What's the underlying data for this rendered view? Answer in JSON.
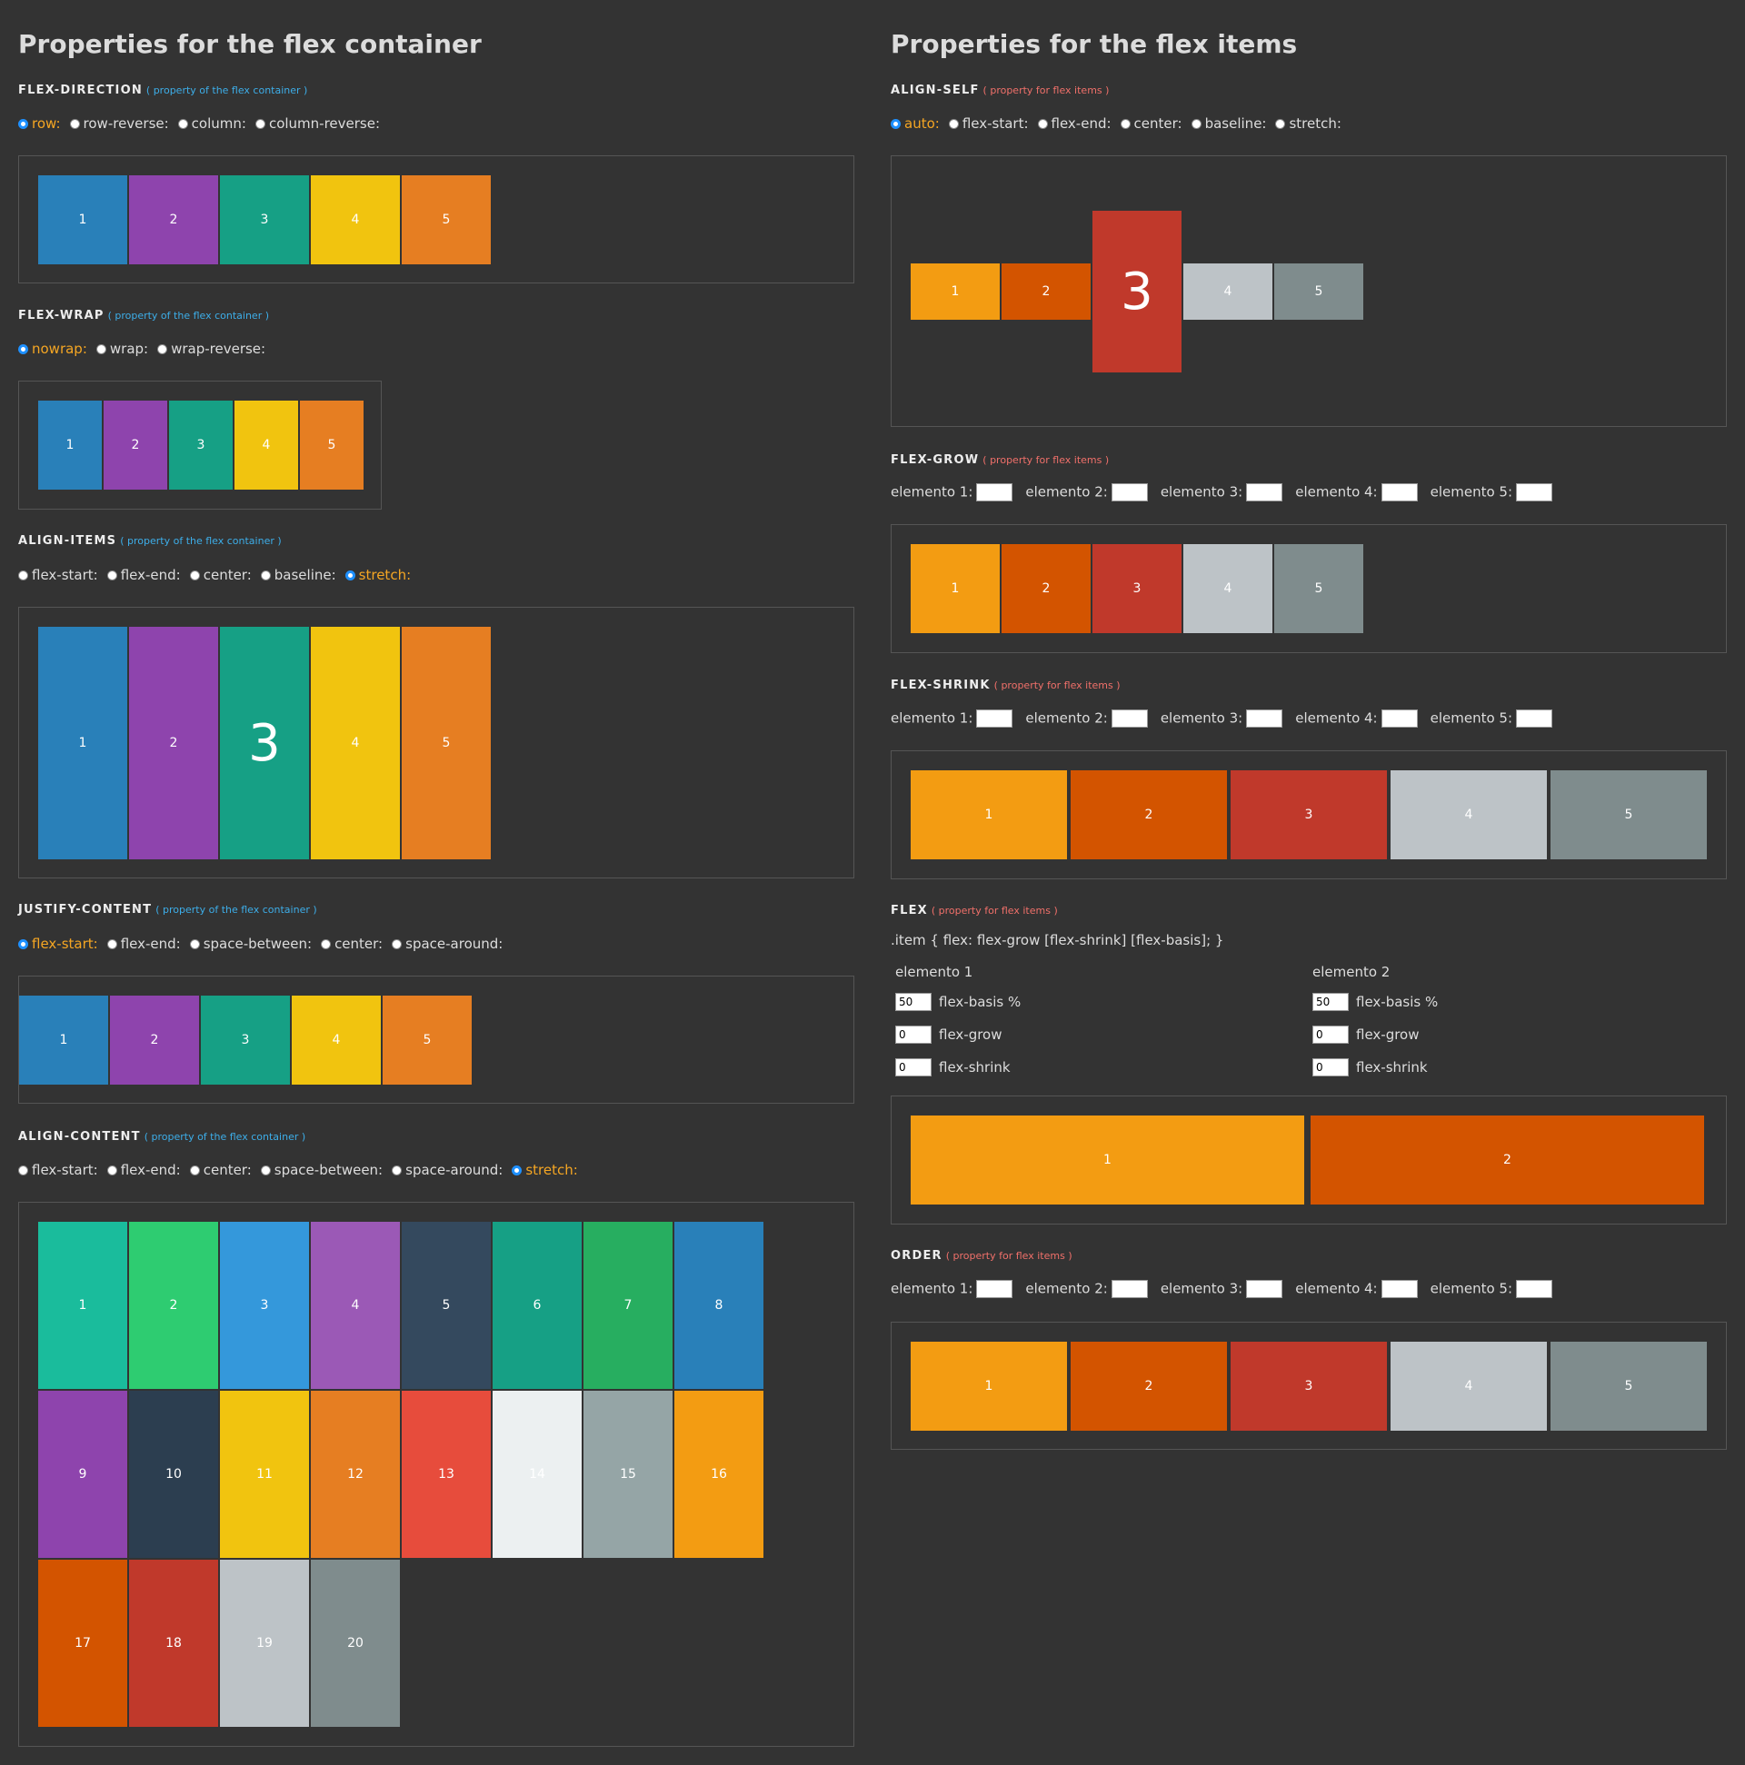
{
  "left": {
    "title": "Properties for the flex container",
    "note": "( property of the flex container )",
    "flex_direction": {
      "title": "FLEX-DIRECTION",
      "options": [
        "row:",
        "row-reverse:",
        "column:",
        "column-reverse:"
      ],
      "selected": 0,
      "items": [
        "1",
        "2",
        "3",
        "4",
        "5"
      ]
    },
    "flex_wrap": {
      "title": "FLEX-WRAP",
      "options": [
        "nowrap:",
        "wrap:",
        "wrap-reverse:"
      ],
      "selected": 0,
      "items": [
        "1",
        "2",
        "3",
        "4",
        "5"
      ]
    },
    "align_items": {
      "title": "ALIGN-ITEMS",
      "options": [
        "flex-start:",
        "flex-end:",
        "center:",
        "baseline:",
        "stretch:"
      ],
      "selected": 4,
      "items": [
        "1",
        "2",
        "3",
        "4",
        "5"
      ]
    },
    "justify_content": {
      "title": "JUSTIFY-CONTENT",
      "options": [
        "flex-start:",
        "flex-end:",
        "space-between:",
        "center:",
        "space-around:"
      ],
      "selected": 0,
      "items": [
        "1",
        "2",
        "3",
        "4",
        "5"
      ]
    },
    "align_content": {
      "title": "ALIGN-CONTENT",
      "options": [
        "flex-start:",
        "flex-end:",
        "center:",
        "space-between:",
        "space-around:",
        "stretch:"
      ],
      "selected": 5,
      "items": [
        "1",
        "2",
        "3",
        "4",
        "5",
        "6",
        "7",
        "8",
        "9",
        "10",
        "11",
        "12",
        "13",
        "14",
        "15",
        "16",
        "17",
        "18",
        "19",
        "20"
      ]
    }
  },
  "right": {
    "title": "Properties for the flex items",
    "note": "( property for flex items )",
    "align_self": {
      "title": "ALIGN-SELF",
      "options": [
        "auto:",
        "flex-start:",
        "flex-end:",
        "center:",
        "baseline:",
        "stretch:"
      ],
      "selected": 0,
      "items": [
        "1",
        "2",
        "3",
        "4",
        "5"
      ]
    },
    "flex_grow": {
      "title": "FLEX-GROW",
      "labels": [
        "elemento 1:",
        "elemento 2:",
        "elemento 3:",
        "elemento 4:",
        "elemento 5:"
      ],
      "items": [
        "1",
        "2",
        "3",
        "4",
        "5"
      ]
    },
    "flex_shrink": {
      "title": "FLEX-SHRINK",
      "labels": [
        "elemento 1:",
        "elemento 2:",
        "elemento 3:",
        "elemento 4:",
        "elemento 5:"
      ],
      "items": [
        "1",
        "2",
        "3",
        "4",
        "5"
      ]
    },
    "flex": {
      "title": "FLEX",
      "syntax": ".item { flex: flex-grow [flex-shrink] [flex-basis]; }",
      "element1": {
        "label": "elemento 1",
        "basis": "50",
        "grow": "0",
        "shrink": "0"
      },
      "element2": {
        "label": "elemento 2",
        "basis": "50",
        "grow": "0",
        "shrink": "0"
      },
      "basis_label": "flex-basis %",
      "grow_label": "flex-grow",
      "shrink_label": "flex-shrink",
      "items": [
        "1",
        "2"
      ]
    },
    "order": {
      "title": "ORDER",
      "labels": [
        "elemento 1:",
        "elemento 2:",
        "elemento 3:",
        "elemento 4:",
        "elemento 5:"
      ],
      "items": [
        "1",
        "2",
        "3",
        "4",
        "5"
      ]
    }
  },
  "colors": {
    "container_items": [
      "#2980b9",
      "#8e44ad",
      "#16a085",
      "#f1c40f",
      "#e67e22"
    ],
    "flex_items": [
      "#f39c12",
      "#d35400",
      "#c0392b",
      "#bdc3c7",
      "#7f8c8d"
    ],
    "align_content_items": [
      "#1abc9c",
      "#2ecc71",
      "#3498db",
      "#9b59b6",
      "#34495e",
      "#16a085",
      "#27ae60",
      "#2980b9",
      "#8e44ad",
      "#2c3e50",
      "#f1c40f",
      "#e67e22",
      "#e74c3c",
      "#ecf0f1",
      "#95a5a6",
      "#f39c12",
      "#d35400",
      "#c0392b",
      "#bdc3c7",
      "#7f8c8d"
    ],
    "selected_text": "#f5a623",
    "container_note": "#3daee9",
    "item_note": "#f0706a"
  }
}
